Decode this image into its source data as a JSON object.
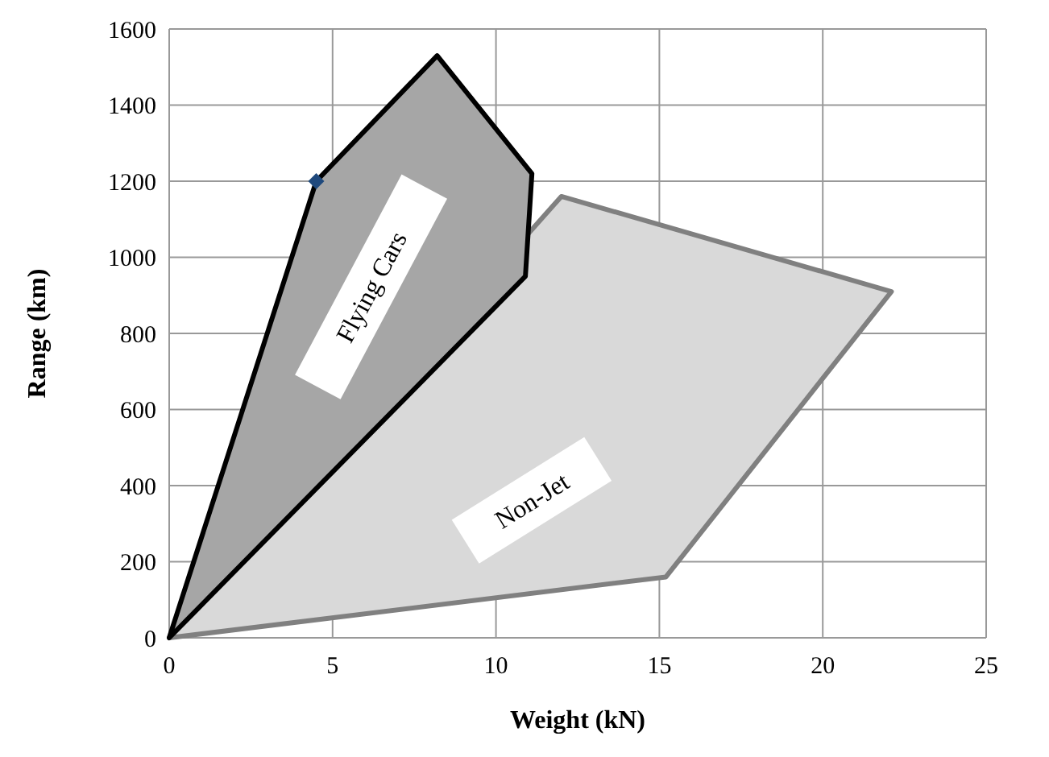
{
  "chart_data": {
    "type": "area",
    "xlabel": "Weight (kN)",
    "ylabel": "Range (km)",
    "xlim": [
      0,
      25
    ],
    "xticks": [
      0,
      5,
      10,
      15,
      20,
      25
    ],
    "ylim": [
      0,
      1600
    ],
    "yticks": [
      0,
      200,
      400,
      600,
      800,
      1000,
      1200,
      1400,
      1600
    ],
    "grid": true,
    "series": [
      {
        "name": "Non-Jet",
        "color": "#d9d9d9",
        "x": [
          0,
          15.2,
          22.1,
          12,
          0
        ],
        "values": [
          0,
          160,
          910,
          1160,
          0
        ]
      },
      {
        "name": "Flying Cars",
        "color": "#a6a6a6",
        "x": [
          0,
          4.5,
          8.2,
          11.1,
          10.9,
          0
        ],
        "values": [
          0,
          1200,
          1530,
          1220,
          950,
          0
        ]
      },
      {
        "type": "scatter",
        "color": "#1f497d",
        "marker": "diamond",
        "x": [
          4.5
        ],
        "values": [
          1200
        ]
      }
    ]
  }
}
